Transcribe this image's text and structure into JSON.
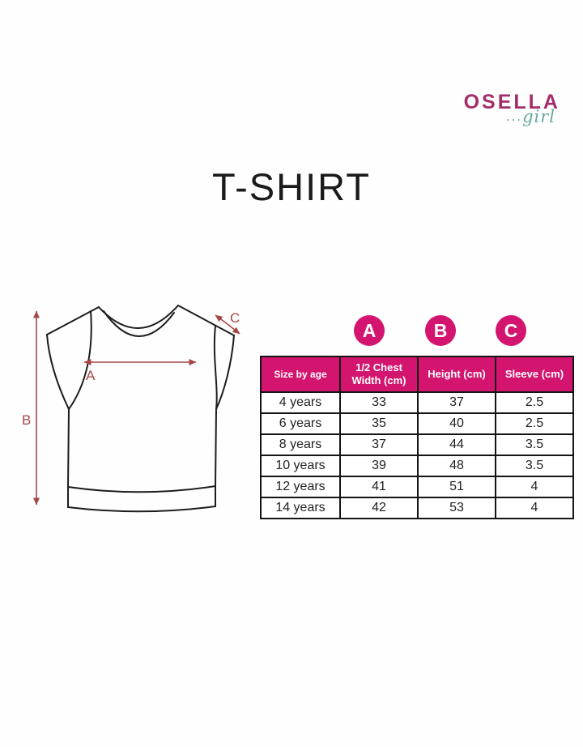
{
  "brand": {
    "name": "OSELLA",
    "sub": "girl",
    "dots": "...",
    "name_color": "#a32d6a",
    "sub_color": "#68a8a1"
  },
  "page_title": "T-SHIRT",
  "diagram": {
    "labels": {
      "a": "A",
      "b": "B",
      "c": "C"
    },
    "arrow_color": "#a64647",
    "outline_color": "#1d1d1d"
  },
  "size_panel": {
    "accent_color": "#d4156f",
    "circles": [
      "A",
      "B",
      "C"
    ],
    "table": {
      "headers": [
        "Size by age",
        "1/2 Chest Width (cm)",
        "Height (cm)",
        "Sleeve (cm)"
      ],
      "rows": [
        [
          "4 years",
          "33",
          "37",
          "2.5"
        ],
        [
          "6 years",
          "35",
          "40",
          "2.5"
        ],
        [
          "8 years",
          "37",
          "44",
          "3.5"
        ],
        [
          "10 years",
          "39",
          "48",
          "3.5"
        ],
        [
          "12 years",
          "41",
          "51",
          "4"
        ],
        [
          "14 years",
          "42",
          "53",
          "4"
        ]
      ]
    }
  }
}
